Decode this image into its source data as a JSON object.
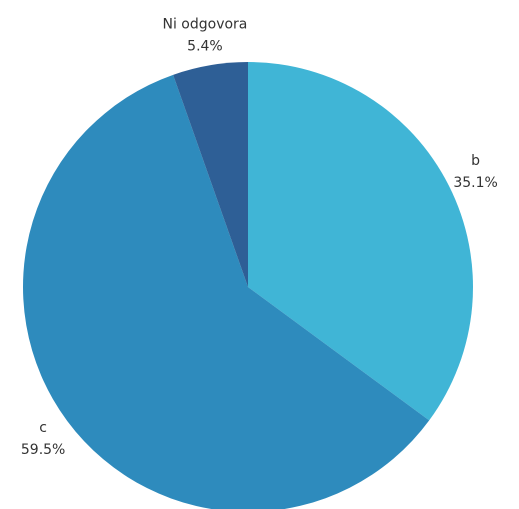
{
  "chart_data": {
    "type": "pie",
    "categories": [
      "b",
      "c",
      "Ni odgovora"
    ],
    "values": [
      35.1,
      59.5,
      5.4
    ],
    "value_labels": [
      "35.1%",
      "59.5%",
      "5.4%"
    ],
    "colors": [
      "#40b5d6",
      "#2e8bbd",
      "#2e5f96"
    ]
  }
}
